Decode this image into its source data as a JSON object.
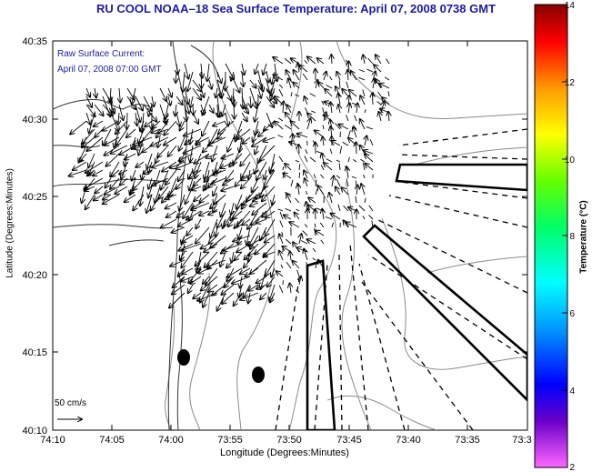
{
  "title": "RU COOL  NOAA–18  Sea Surface Temperature:  April 07, 2008 0738 GMT",
  "annotation": {
    "line1": "Raw Surface Current:",
    "line2": "April 07, 2008 07:00 GMT"
  },
  "scale_label": "50 cm/s",
  "axes": {
    "xlabel": "Longitude (Degrees:Minutes)",
    "ylabel": "Latitude (Degrees:Minutes)",
    "xticks": [
      "74:10",
      "74:05",
      "74:00",
      "73:55",
      "73:50",
      "73:45",
      "73:40",
      "73:35",
      "73:3"
    ],
    "yticks": [
      "40:35",
      "40:30",
      "40:25",
      "40:20",
      "40:15",
      "40:10"
    ]
  },
  "colorbar": {
    "title": "Temperature (°C)",
    "min": 2,
    "max": 14,
    "ticks": [
      "14",
      "12",
      "10",
      "8",
      "6",
      "4",
      "2"
    ]
  },
  "colors": {
    "title": "#1a1aa8",
    "annotation": "#1a1aa8",
    "coast": "#333333",
    "contour": "#8a8a8a"
  }
}
